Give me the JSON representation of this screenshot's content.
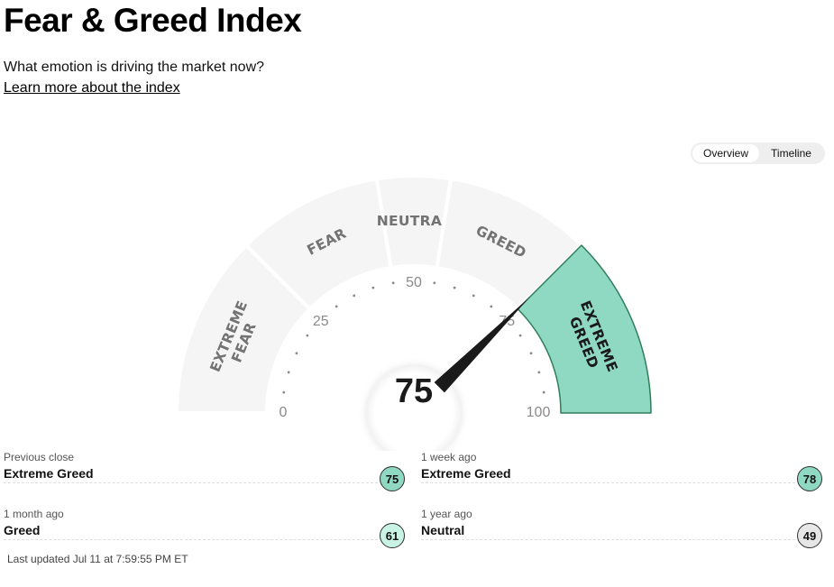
{
  "header": {
    "title": "Fear & Greed Index",
    "subtitle": "What emotion is driving the market now?",
    "learn_more": "Learn more about the index"
  },
  "view_toggle": {
    "options": [
      "Overview",
      "Timeline"
    ],
    "selected": "Overview"
  },
  "gauge": {
    "value": 75,
    "score_text": "75",
    "current_zone": "Extreme Greed",
    "zones": [
      {
        "lines": [
          "EXTREME",
          "FEAR"
        ],
        "from": 0,
        "to": 25
      },
      {
        "lines": [
          "FEAR"
        ],
        "from": 25,
        "to": 45
      },
      {
        "lines": [
          "NEUTRAL"
        ],
        "from": 45,
        "to": 55
      },
      {
        "lines": [
          "GREED"
        ],
        "from": 55,
        "to": 75
      },
      {
        "lines": [
          "EXTREME",
          "GREED"
        ],
        "from": 75,
        "to": 100
      }
    ],
    "tick_labels": [
      "0",
      "25",
      "50",
      "75",
      "100"
    ],
    "colors": {
      "inactive_zone": "#f5f5f5",
      "extreme_greed": "#8fd8c1",
      "extreme_greed_border": "#2e7d5b",
      "needle": "#1a1a1a"
    }
  },
  "history": [
    {
      "label": "Previous close",
      "rating": "Extreme Greed",
      "value": "75",
      "color": "#8fd8c1"
    },
    {
      "label": "1 week ago",
      "rating": "Extreme Greed",
      "value": "78",
      "color": "#8fd8c1"
    },
    {
      "label": "1 month ago",
      "rating": "Greed",
      "value": "61",
      "color": "#c8f3e5"
    },
    {
      "label": "1 year ago",
      "rating": "Neutral",
      "value": "49",
      "color": "#e6e6e6"
    }
  ],
  "last_updated": "Last updated Jul 11 at 7:59:55 PM ET"
}
